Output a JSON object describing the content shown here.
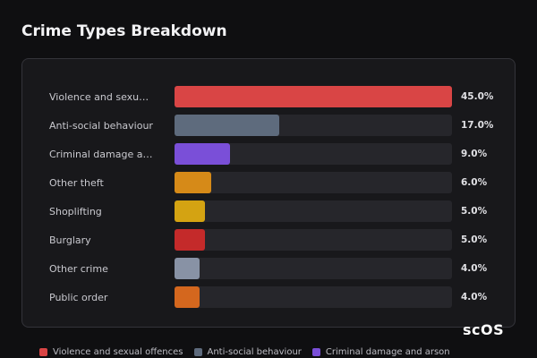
{
  "chart_data": {
    "type": "bar",
    "orientation": "horizontal",
    "title": "Crime Types Breakdown",
    "categories": [
      "Violence and sexual offences",
      "Anti-social behaviour",
      "Criminal damage and arson",
      "Other theft",
      "Shoplifting",
      "Burglary",
      "Other crime",
      "Public order"
    ],
    "values": [
      45.0,
      17.0,
      9.0,
      6.0,
      5.0,
      5.0,
      4.0,
      4.0
    ],
    "value_labels": [
      "45.0%",
      "17.0%",
      "9.0%",
      "6.0%",
      "5.0%",
      "5.0%",
      "4.0%",
      "4.0%"
    ],
    "colors": [
      "#d94545",
      "#5e6b7d",
      "#7a4fd8",
      "#d68a18",
      "#d4a312",
      "#c42a2a",
      "#8892a5",
      "#d4671e"
    ],
    "xlim": [
      0,
      45
    ],
    "watermark": "scOS"
  }
}
